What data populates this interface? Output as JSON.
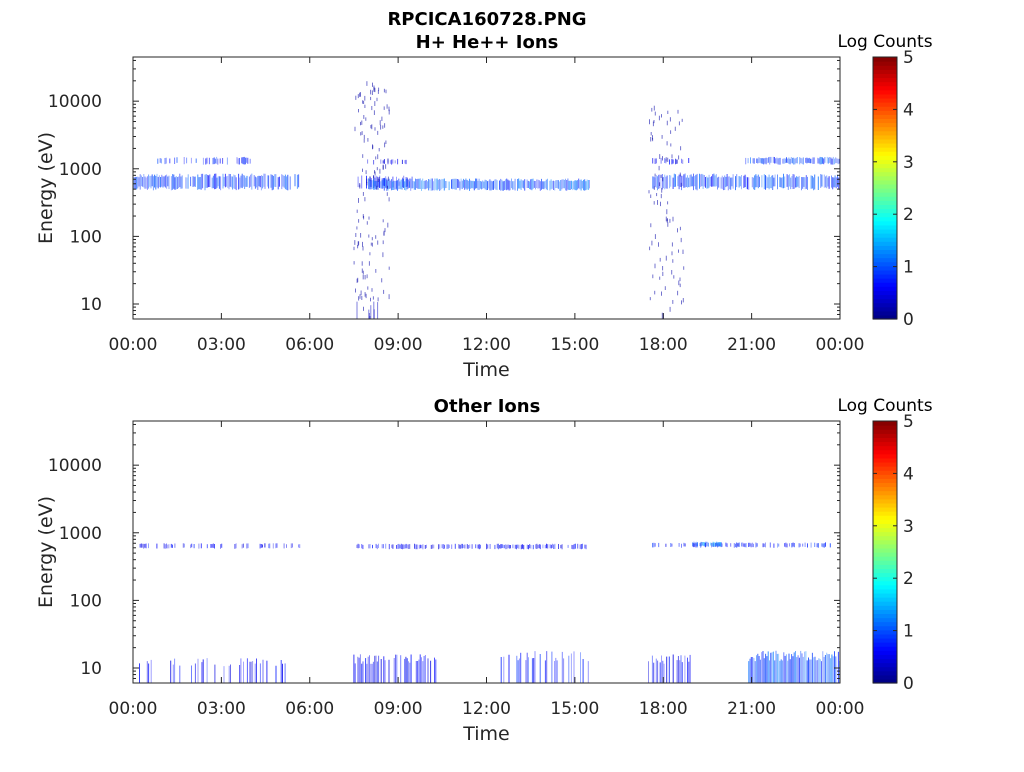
{
  "figure_title": "RPCICA160728.PNG",
  "chart_data": [
    {
      "type": "heatmap",
      "title": "H+ He++ Ions",
      "xlabel": "Time",
      "ylabel": "Energy (eV)",
      "x_ticks": [
        "00:00",
        "03:00",
        "06:00",
        "09:00",
        "12:00",
        "15:00",
        "18:00",
        "21:00",
        "00:00"
      ],
      "xlim_hours": [
        0,
        24
      ],
      "y_scale": "log",
      "ylim": [
        6,
        45000
      ],
      "y_ticks": [
        10,
        100,
        1000,
        10000
      ],
      "y_tick_labels": [
        "10",
        "100",
        "1000",
        "10000"
      ],
      "colorbar": {
        "label": "Log Counts",
        "ticks": [
          "0",
          "1",
          "2",
          "3",
          "4",
          "5"
        ],
        "range": [
          0,
          5
        ],
        "colormap": "jet"
      },
      "data_gaps_hours": [
        [
          5.7,
          7.5
        ],
        [
          15.5,
          17.5
        ]
      ],
      "bands": [
        {
          "t_start": 0.0,
          "t_end": 5.7,
          "e_low": 480,
          "e_high": 850,
          "log_counts": 0.9,
          "density": 0.85
        },
        {
          "t_start": 0.8,
          "t_end": 4.0,
          "e_low": 1150,
          "e_high": 1500,
          "log_counts": 0.8,
          "density": 0.5
        },
        {
          "t_start": 7.6,
          "t_end": 9.5,
          "e_low": 500,
          "e_high": 800,
          "log_counts": 0.6,
          "density": 0.6
        },
        {
          "t_start": 8.0,
          "t_end": 15.5,
          "e_low": 470,
          "e_high": 720,
          "log_counts": 1.0,
          "density": 0.95
        },
        {
          "t_start": 7.8,
          "t_end": 9.3,
          "e_low": 1150,
          "e_high": 1400,
          "log_counts": 0.5,
          "density": 0.3
        },
        {
          "t_start": 17.6,
          "t_end": 24.0,
          "e_low": 480,
          "e_high": 850,
          "log_counts": 0.9,
          "density": 0.85
        },
        {
          "t_start": 17.6,
          "t_end": 18.9,
          "e_low": 1150,
          "e_high": 1450,
          "log_counts": 0.6,
          "density": 0.4
        },
        {
          "t_start": 20.8,
          "t_end": 24.0,
          "e_low": 1150,
          "e_high": 1500,
          "log_counts": 0.9,
          "density": 0.9
        }
      ],
      "scatter_regions": [
        {
          "t_start": 7.5,
          "t_end": 8.7,
          "e_low": 8,
          "e_high": 18000,
          "log_counts": 0.2,
          "count": 140
        },
        {
          "t_start": 17.5,
          "t_end": 18.7,
          "e_low": 8,
          "e_high": 9000,
          "log_counts": 0.2,
          "count": 90
        }
      ],
      "low_energy_spikes": [
        {
          "t_start": 7.5,
          "t_end": 8.5,
          "e_low": 6,
          "e_high": 12,
          "count": 8
        },
        {
          "t_start": 17.6,
          "t_end": 18.6,
          "e_low": 6,
          "e_high": 12,
          "count": 3
        }
      ]
    },
    {
      "type": "heatmap",
      "title": "Other Ions",
      "xlabel": "Time",
      "ylabel": "Energy (eV)",
      "x_ticks": [
        "00:00",
        "03:00",
        "06:00",
        "09:00",
        "12:00",
        "15:00",
        "18:00",
        "21:00",
        "00:00"
      ],
      "xlim_hours": [
        0,
        24
      ],
      "y_scale": "log",
      "ylim": [
        6,
        45000
      ],
      "y_ticks": [
        10,
        100,
        1000,
        10000
      ],
      "y_tick_labels": [
        "10",
        "100",
        "1000",
        "10000"
      ],
      "colorbar": {
        "label": "Log Counts",
        "ticks": [
          "0",
          "1",
          "2",
          "3",
          "4",
          "5"
        ],
        "range": [
          0,
          5
        ],
        "colormap": "jet"
      },
      "data_gaps_hours": [
        [
          5.7,
          7.5
        ],
        [
          15.5,
          17.5
        ]
      ],
      "bands": [
        {
          "t_start": 0.2,
          "t_end": 5.7,
          "e_low": 580,
          "e_high": 700,
          "log_counts": 0.6,
          "density": 0.35
        },
        {
          "t_start": 7.6,
          "t_end": 15.5,
          "e_low": 570,
          "e_high": 690,
          "log_counts": 0.6,
          "density": 0.6
        },
        {
          "t_start": 17.6,
          "t_end": 23.7,
          "e_low": 600,
          "e_high": 720,
          "log_counts": 0.7,
          "density": 0.5
        },
        {
          "t_start": 19.0,
          "t_end": 20.0,
          "e_low": 620,
          "e_high": 740,
          "log_counts": 1.2,
          "density": 0.9
        }
      ],
      "low_energy_bars": [
        {
          "t_start": 0.0,
          "t_end": 5.5,
          "e_low": 6,
          "e_high": 14,
          "log_counts": 0.6,
          "density": 0.25
        },
        {
          "t_start": 7.5,
          "t_end": 10.3,
          "e_low": 6,
          "e_high": 16,
          "log_counts": 0.6,
          "density": 0.6
        },
        {
          "t_start": 12.5,
          "t_end": 15.5,
          "e_low": 6,
          "e_high": 18,
          "log_counts": 0.7,
          "density": 0.5
        },
        {
          "t_start": 17.5,
          "t_end": 19.0,
          "e_low": 6,
          "e_high": 16,
          "log_counts": 0.6,
          "density": 0.5
        },
        {
          "t_start": 20.9,
          "t_end": 24.0,
          "e_low": 6,
          "e_high": 18,
          "log_counts": 1.0,
          "density": 0.95
        }
      ]
    }
  ]
}
